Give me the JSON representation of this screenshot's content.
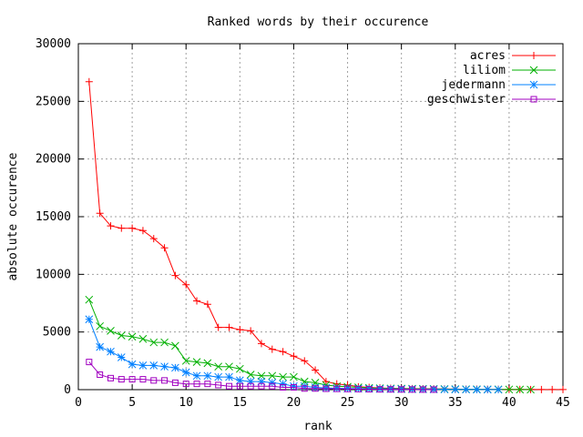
{
  "chart_data": {
    "type": "line",
    "title": "Ranked words by their occurence",
    "xlabel": "rank",
    "ylabel": "absolute occurence",
    "xlim": [
      0,
      45
    ],
    "ylim": [
      0,
      30000
    ],
    "xticks": [
      0,
      5,
      10,
      15,
      20,
      25,
      30,
      35,
      40,
      45
    ],
    "yticks": [
      0,
      5000,
      10000,
      15000,
      20000,
      25000,
      30000
    ],
    "grid": true,
    "legend_position": "top-right",
    "series": [
      {
        "name": "acres",
        "color": "#ff0000",
        "marker": "plus",
        "x": [
          1,
          2,
          3,
          4,
          5,
          6,
          7,
          8,
          9,
          10,
          11,
          12,
          13,
          14,
          15,
          16,
          17,
          18,
          19,
          20,
          21,
          22,
          23,
          24,
          25,
          26,
          27,
          28,
          29,
          30,
          31,
          32,
          33,
          34,
          35,
          36,
          37,
          38,
          39,
          40,
          41,
          42,
          43,
          44,
          45
        ],
        "values": [
          26700,
          15300,
          14200,
          14000,
          14000,
          13800,
          13100,
          12300,
          9900,
          9100,
          7700,
          7400,
          5400,
          5400,
          5200,
          5100,
          4000,
          3500,
          3300,
          2900,
          2500,
          1700,
          700,
          500,
          400,
          250,
          200,
          150,
          120,
          100,
          90,
          80,
          70,
          60,
          50,
          40,
          35,
          30,
          25,
          20,
          15,
          12,
          10,
          8,
          5
        ]
      },
      {
        "name": "liliom",
        "color": "#00b000",
        "marker": "x",
        "x": [
          1,
          2,
          3,
          4,
          5,
          6,
          7,
          8,
          9,
          10,
          11,
          12,
          13,
          14,
          15,
          16,
          17,
          18,
          19,
          20,
          21,
          22,
          23,
          24,
          25,
          26,
          27,
          28,
          29,
          30,
          31,
          32,
          33,
          34,
          35,
          36,
          37,
          38,
          39,
          40,
          41,
          42
        ],
        "values": [
          7800,
          5500,
          5100,
          4700,
          4600,
          4400,
          4100,
          4100,
          3800,
          2500,
          2400,
          2300,
          2000,
          2000,
          1800,
          1300,
          1200,
          1200,
          1100,
          1100,
          700,
          600,
          400,
          300,
          250,
          200,
          150,
          120,
          100,
          90,
          80,
          70,
          60,
          50,
          40,
          35,
          30,
          25,
          20,
          15,
          10,
          5
        ]
      },
      {
        "name": "jedermann",
        "color": "#0080ff",
        "marker": "star",
        "x": [
          1,
          2,
          3,
          4,
          5,
          6,
          7,
          8,
          9,
          10,
          11,
          12,
          13,
          14,
          15,
          16,
          17,
          18,
          19,
          20,
          21,
          22,
          23,
          24,
          25,
          26,
          27,
          28,
          29,
          30,
          31,
          32,
          33,
          34,
          35,
          36,
          37,
          38,
          39
        ],
        "values": [
          6100,
          3700,
          3300,
          2800,
          2200,
          2100,
          2100,
          2000,
          1900,
          1500,
          1200,
          1200,
          1100,
          1100,
          800,
          700,
          700,
          600,
          500,
          300,
          300,
          200,
          150,
          120,
          100,
          90,
          80,
          70,
          60,
          50,
          40,
          35,
          30,
          25,
          20,
          15,
          12,
          10,
          5
        ]
      },
      {
        "name": "geschwister",
        "color": "#a000c0",
        "marker": "square",
        "x": [
          1,
          2,
          3,
          4,
          5,
          6,
          7,
          8,
          9,
          10,
          11,
          12,
          13,
          14,
          15,
          16,
          17,
          18,
          19,
          20,
          21,
          22,
          23,
          24,
          25,
          26,
          27,
          28,
          29,
          30,
          31,
          32,
          33
        ],
        "values": [
          2400,
          1300,
          1000,
          900,
          900,
          900,
          800,
          800,
          600,
          500,
          500,
          500,
          400,
          300,
          300,
          300,
          300,
          300,
          200,
          200,
          100,
          100,
          80,
          70,
          60,
          50,
          40,
          30,
          25,
          20,
          15,
          10,
          5
        ]
      }
    ]
  }
}
